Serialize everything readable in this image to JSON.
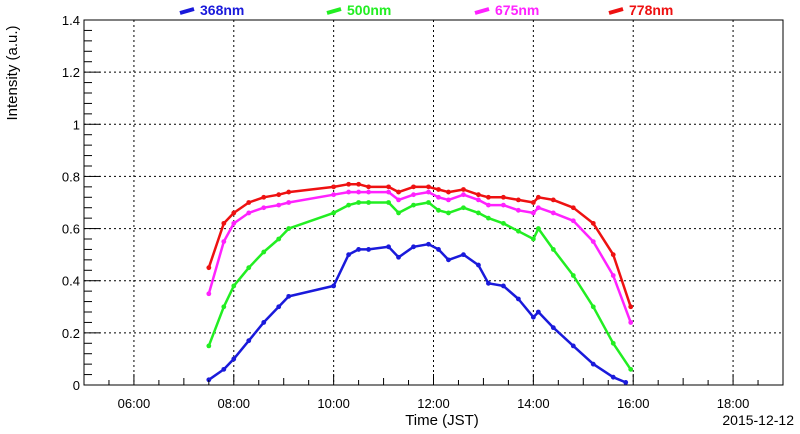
{
  "chart_data": {
    "type": "scatter",
    "title": "",
    "xlabel": "Time (JST)",
    "ylabel": "Intensity (a.u.)",
    "date_label": "2015-12-12",
    "xlim": [
      5.0,
      19.0
    ],
    "ylim": [
      0,
      1.4
    ],
    "x_ticks": [
      {
        "value": 6,
        "label": "06:00"
      },
      {
        "value": 8,
        "label": "08:00"
      },
      {
        "value": 10,
        "label": "10:00"
      },
      {
        "value": 12,
        "label": "12:00"
      },
      {
        "value": 14,
        "label": "14:00"
      },
      {
        "value": 16,
        "label": "16:00"
      },
      {
        "value": 18,
        "label": "18:00"
      }
    ],
    "y_ticks": [
      {
        "value": 0,
        "label": "0"
      },
      {
        "value": 0.2,
        "label": "0.2"
      },
      {
        "value": 0.4,
        "label": "0.4"
      },
      {
        "value": 0.6,
        "label": "0.6"
      },
      {
        "value": 0.8,
        "label": "0.8"
      },
      {
        "value": 1.0,
        "label": "1"
      },
      {
        "value": 1.2,
        "label": "1.2"
      },
      {
        "value": 1.4,
        "label": "1.4"
      }
    ],
    "grid": true,
    "legend_position": "top",
    "series": [
      {
        "name": "368nm",
        "color": "#1a1adb",
        "x": [
          7.5,
          7.8,
          8.0,
          8.3,
          8.6,
          8.9,
          9.1,
          10.0,
          10.3,
          10.5,
          10.7,
          11.1,
          11.3,
          11.6,
          11.9,
          12.1,
          12.3,
          12.6,
          12.9,
          13.1,
          13.4,
          13.7,
          14.0,
          14.1,
          14.4,
          14.8,
          15.2,
          15.6,
          15.85
        ],
        "y": [
          0.02,
          0.06,
          0.1,
          0.17,
          0.24,
          0.3,
          0.34,
          0.38,
          0.5,
          0.52,
          0.52,
          0.53,
          0.49,
          0.53,
          0.54,
          0.52,
          0.48,
          0.5,
          0.46,
          0.39,
          0.38,
          0.33,
          0.26,
          0.28,
          0.22,
          0.15,
          0.08,
          0.03,
          0.01
        ]
      },
      {
        "name": "500nm",
        "color": "#22ee22",
        "x": [
          7.5,
          7.8,
          8.0,
          8.3,
          8.6,
          8.9,
          9.1,
          10.0,
          10.3,
          10.5,
          10.7,
          11.1,
          11.3,
          11.6,
          11.9,
          12.1,
          12.3,
          12.6,
          12.9,
          13.1,
          13.4,
          13.7,
          14.0,
          14.1,
          14.4,
          14.8,
          15.2,
          15.6,
          15.95
        ],
        "y": [
          0.15,
          0.3,
          0.38,
          0.45,
          0.51,
          0.56,
          0.6,
          0.66,
          0.69,
          0.7,
          0.7,
          0.7,
          0.66,
          0.69,
          0.7,
          0.67,
          0.66,
          0.68,
          0.66,
          0.64,
          0.62,
          0.59,
          0.56,
          0.6,
          0.52,
          0.42,
          0.3,
          0.16,
          0.06
        ]
      },
      {
        "name": "675nm",
        "color": "#ff22ff",
        "x": [
          7.5,
          7.8,
          8.0,
          8.3,
          8.6,
          8.9,
          9.1,
          10.0,
          10.3,
          10.5,
          10.7,
          11.1,
          11.3,
          11.6,
          11.9,
          12.1,
          12.3,
          12.6,
          12.9,
          13.1,
          13.4,
          13.7,
          14.0,
          14.1,
          14.4,
          14.8,
          15.2,
          15.6,
          15.95
        ],
        "y": [
          0.35,
          0.55,
          0.62,
          0.66,
          0.68,
          0.69,
          0.7,
          0.73,
          0.74,
          0.74,
          0.74,
          0.74,
          0.71,
          0.73,
          0.74,
          0.72,
          0.71,
          0.73,
          0.71,
          0.69,
          0.69,
          0.67,
          0.66,
          0.68,
          0.66,
          0.63,
          0.55,
          0.42,
          0.24
        ]
      },
      {
        "name": "778nm",
        "color": "#ee1111",
        "x": [
          7.5,
          7.8,
          8.0,
          8.3,
          8.6,
          8.9,
          9.1,
          10.0,
          10.3,
          10.5,
          10.7,
          11.1,
          11.3,
          11.6,
          11.9,
          12.1,
          12.3,
          12.6,
          12.9,
          13.1,
          13.4,
          13.7,
          14.0,
          14.1,
          14.4,
          14.8,
          15.2,
          15.6,
          15.95
        ],
        "y": [
          0.45,
          0.62,
          0.66,
          0.7,
          0.72,
          0.73,
          0.74,
          0.76,
          0.77,
          0.77,
          0.76,
          0.76,
          0.74,
          0.76,
          0.76,
          0.75,
          0.74,
          0.75,
          0.73,
          0.72,
          0.72,
          0.71,
          0.7,
          0.72,
          0.71,
          0.68,
          0.62,
          0.5,
          0.3
        ]
      }
    ]
  }
}
